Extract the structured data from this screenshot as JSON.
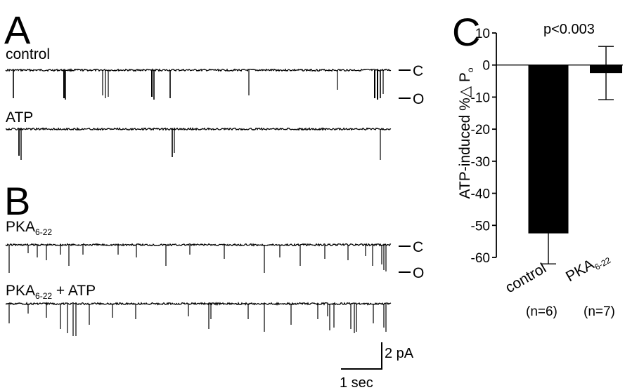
{
  "panels": {
    "a": {
      "letter": "A",
      "trace1": "control",
      "trace2": "ATP"
    },
    "b": {
      "letter": "B",
      "trace1_main": "PKA",
      "trace1_sub": "6-22",
      "trace2_main": "PKA",
      "trace2_sub": "6-22",
      "trace2_suffix": " + ATP"
    },
    "c": {
      "letter": "C"
    }
  },
  "state_labels": {
    "closed": "C",
    "open": "O"
  },
  "scale_bar": {
    "current": "2 pA",
    "time": "1 sec"
  },
  "chart_data": {
    "type": "bar",
    "categories": [
      "control",
      "PKA6-22"
    ],
    "category_labels": [
      {
        "main": "control",
        "sub": "",
        "n": "(n=6)"
      },
      {
        "main": "PKA",
        "sub": "6-22",
        "n": "(n=7)"
      }
    ],
    "values": [
      -52.5,
      -2.5
    ],
    "errors": [
      9.5,
      8.3
    ],
    "ylabel_main": "ATP-induced %△ P",
    "ylabel_sub": "o",
    "ylim": [
      -60,
      10
    ],
    "yticks": [
      "10",
      "0",
      "-10",
      "-20",
      "-30",
      "-40",
      "-50",
      "-60"
    ],
    "annotation": "p<0.003",
    "bar_color": "#000000",
    "grid": false
  }
}
